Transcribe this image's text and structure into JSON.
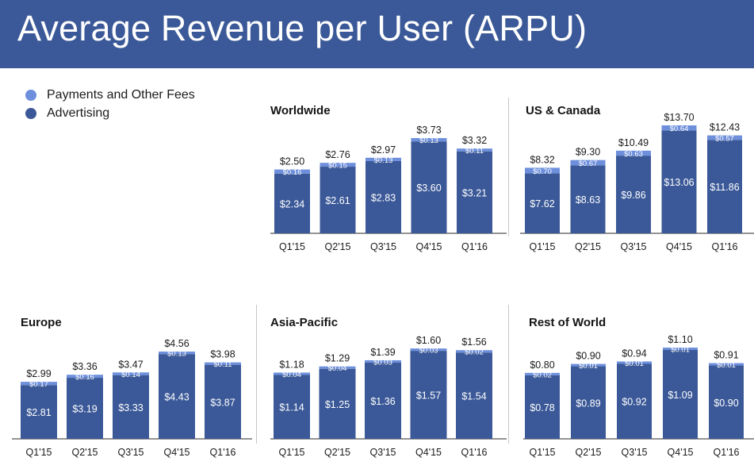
{
  "header": {
    "title": "Average Revenue per User (ARPU)"
  },
  "colors": {
    "header_bg": "#3b5998",
    "advertising": "#3b5998",
    "payments": "#6d8fdc",
    "text": "#1a1a1a"
  },
  "legend": [
    {
      "label": "Payments and Other Fees",
      "color": "#6d8fdc"
    },
    {
      "label": "Advertising",
      "color": "#3b5998"
    }
  ],
  "chart_data": [
    {
      "type": "bar",
      "stacked": true,
      "title": "Worldwide",
      "categories": [
        "Q1'15",
        "Q2'15",
        "Q3'15",
        "Q4'15",
        "Q1'16"
      ],
      "totals": [
        "$2.50",
        "$2.76",
        "$2.97",
        "$3.73",
        "$3.32"
      ],
      "series": [
        {
          "name": "Advertising",
          "values": [
            2.34,
            2.61,
            2.83,
            3.6,
            3.21
          ],
          "labels": [
            "$2.34",
            "$2.61",
            "$2.83",
            "$3.60",
            "$3.21"
          ]
        },
        {
          "name": "Payments and Other Fees",
          "values": [
            0.16,
            0.15,
            0.13,
            0.13,
            0.11
          ],
          "labels": [
            "$0.16",
            "$0.15",
            "$0.13",
            "$0.13",
            "$0.11"
          ]
        }
      ]
    },
    {
      "type": "bar",
      "stacked": true,
      "title": "US & Canada",
      "categories": [
        "Q1'15",
        "Q2'15",
        "Q3'15",
        "Q4'15",
        "Q1'16"
      ],
      "totals": [
        "$8.32",
        "$9.30",
        "$10.49",
        "$13.70",
        "$12.43"
      ],
      "series": [
        {
          "name": "Advertising",
          "values": [
            7.62,
            8.63,
            9.86,
            13.06,
            11.86
          ],
          "labels": [
            "$7.62",
            "$8.63",
            "$9.86",
            "$13.06",
            "$11.86"
          ]
        },
        {
          "name": "Payments and Other Fees",
          "values": [
            0.7,
            0.67,
            0.63,
            0.64,
            0.57
          ],
          "labels": [
            "$0.70",
            "$0.67",
            "$0.63",
            "$0.64",
            "$0.57"
          ]
        }
      ]
    },
    {
      "type": "bar",
      "stacked": true,
      "title": "Europe",
      "categories": [
        "Q1'15",
        "Q2'15",
        "Q3'15",
        "Q4'15",
        "Q1'16"
      ],
      "totals": [
        "$2.99",
        "$3.36",
        "$3.47",
        "$4.56",
        "$3.98"
      ],
      "series": [
        {
          "name": "Advertising",
          "values": [
            2.81,
            3.19,
            3.33,
            4.43,
            3.87
          ],
          "labels": [
            "$2.81",
            "$3.19",
            "$3.33",
            "$4.43",
            "$3.87"
          ]
        },
        {
          "name": "Payments and Other Fees",
          "values": [
            0.17,
            0.16,
            0.14,
            0.13,
            0.11
          ],
          "labels": [
            "$0.17",
            "$0.16",
            "$0.14",
            "$0.13",
            "$0.11"
          ]
        }
      ]
    },
    {
      "type": "bar",
      "stacked": true,
      "title": "Asia-Pacific",
      "categories": [
        "Q1'15",
        "Q2'15",
        "Q3'15",
        "Q4'15",
        "Q1'16"
      ],
      "totals": [
        "$1.18",
        "$1.29",
        "$1.39",
        "$1.60",
        "$1.56"
      ],
      "series": [
        {
          "name": "Advertising",
          "values": [
            1.14,
            1.25,
            1.36,
            1.57,
            1.54
          ],
          "labels": [
            "$1.14",
            "$1.25",
            "$1.36",
            "$1.57",
            "$1.54"
          ]
        },
        {
          "name": "Payments and Other Fees",
          "values": [
            0.04,
            0.04,
            0.03,
            0.03,
            0.02
          ],
          "labels": [
            "$0.04",
            "$0.04",
            "$0.03",
            "$0.03",
            "$0.02"
          ]
        }
      ]
    },
    {
      "type": "bar",
      "stacked": true,
      "title": "Rest of World",
      "categories": [
        "Q1'15",
        "Q2'15",
        "Q3'15",
        "Q4'15",
        "Q1'16"
      ],
      "totals": [
        "$0.80",
        "$0.90",
        "$0.94",
        "$1.10",
        "$0.91"
      ],
      "series": [
        {
          "name": "Advertising",
          "values": [
            0.78,
            0.89,
            0.92,
            1.09,
            0.9
          ],
          "labels": [
            "$0.78",
            "$0.89",
            "$0.92",
            "$1.09",
            "$0.90"
          ]
        },
        {
          "name": "Payments and Other Fees",
          "values": [
            0.02,
            0.01,
            0.01,
            0.01,
            0.01
          ],
          "labels": [
            "$0.02",
            "$0.01",
            "$0.01",
            "$0.01",
            "$0.01"
          ]
        }
      ]
    }
  ]
}
